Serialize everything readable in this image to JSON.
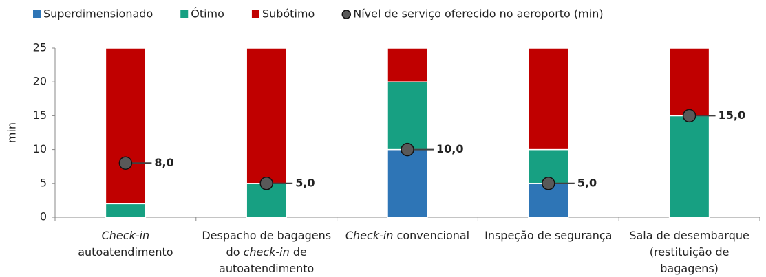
{
  "chart_data": {
    "type": "bar",
    "stacked": true,
    "y_label": "min",
    "categories": [
      [
        "Check-in",
        "autoatendimento"
      ],
      [
        "Despacho de bagagens",
        "do check-in de",
        "autoatendimento"
      ],
      [
        "Check-in convencional"
      ],
      [
        "Inspeção de segurança"
      ],
      [
        "Sala de desembarque",
        "(restituição de",
        "bagagens)"
      ]
    ],
    "italic_terms": [
      "Check-in",
      "check-in"
    ],
    "series": [
      {
        "name": "Superdimensionado",
        "color": "#2e75b6",
        "values": [
          0,
          0,
          10,
          5,
          0
        ]
      },
      {
        "name": "Ótimo",
        "color": "#17a082",
        "values": [
          2,
          5,
          10,
          5,
          15
        ]
      },
      {
        "name": "Subótimo",
        "color": "#c00000",
        "values": [
          23,
          20,
          5,
          15,
          10
        ]
      }
    ],
    "markers": {
      "name": "Nível de serviço oferecido no aeroporto (min)",
      "color": "#595959",
      "values": [
        8,
        5,
        10,
        5,
        15
      ],
      "value_labels": [
        "8,0",
        "5,0",
        "10,0",
        "5,0",
        "15,0"
      ]
    },
    "ylim": [
      0,
      25
    ],
    "yticks": [
      0,
      5,
      10,
      15,
      20,
      25
    ],
    "legend": "top"
  }
}
